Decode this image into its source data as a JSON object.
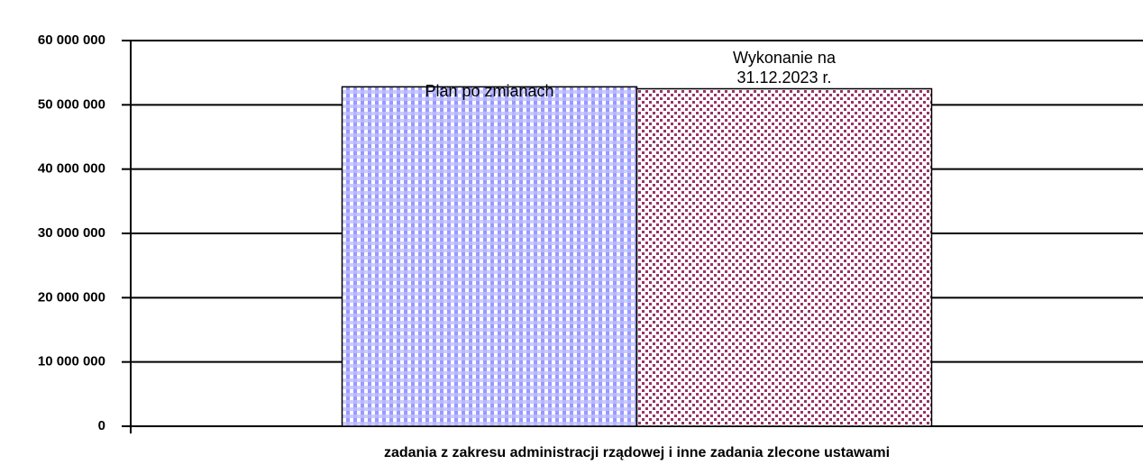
{
  "chart_data": {
    "type": "bar",
    "categories": [
      "zadania z zakresu administracji rządowej i inne zadania zlecone ustawami"
    ],
    "series": [
      {
        "name": "Plan po zmianach",
        "color": "#9999ff",
        "values": [
          52800000
        ]
      },
      {
        "name": "Wykonanie na 31.12.2023 r.",
        "color": "#993366",
        "values": [
          52500000
        ]
      }
    ],
    "ylim": [
      0,
      60000000
    ],
    "yticks": [
      0,
      {
        "value": 10000000,
        "label": "10 000 000"
      },
      {
        "value": 20000000,
        "label": "20 000 000"
      },
      {
        "value": 30000000,
        "label": "30 000 000"
      },
      {
        "value": 40000000,
        "label": "40 000 000"
      },
      {
        "value": 50000000,
        "label": "50 000 000"
      },
      {
        "value": 60000000,
        "label": "60 000 000"
      }
    ],
    "grid": true
  }
}
